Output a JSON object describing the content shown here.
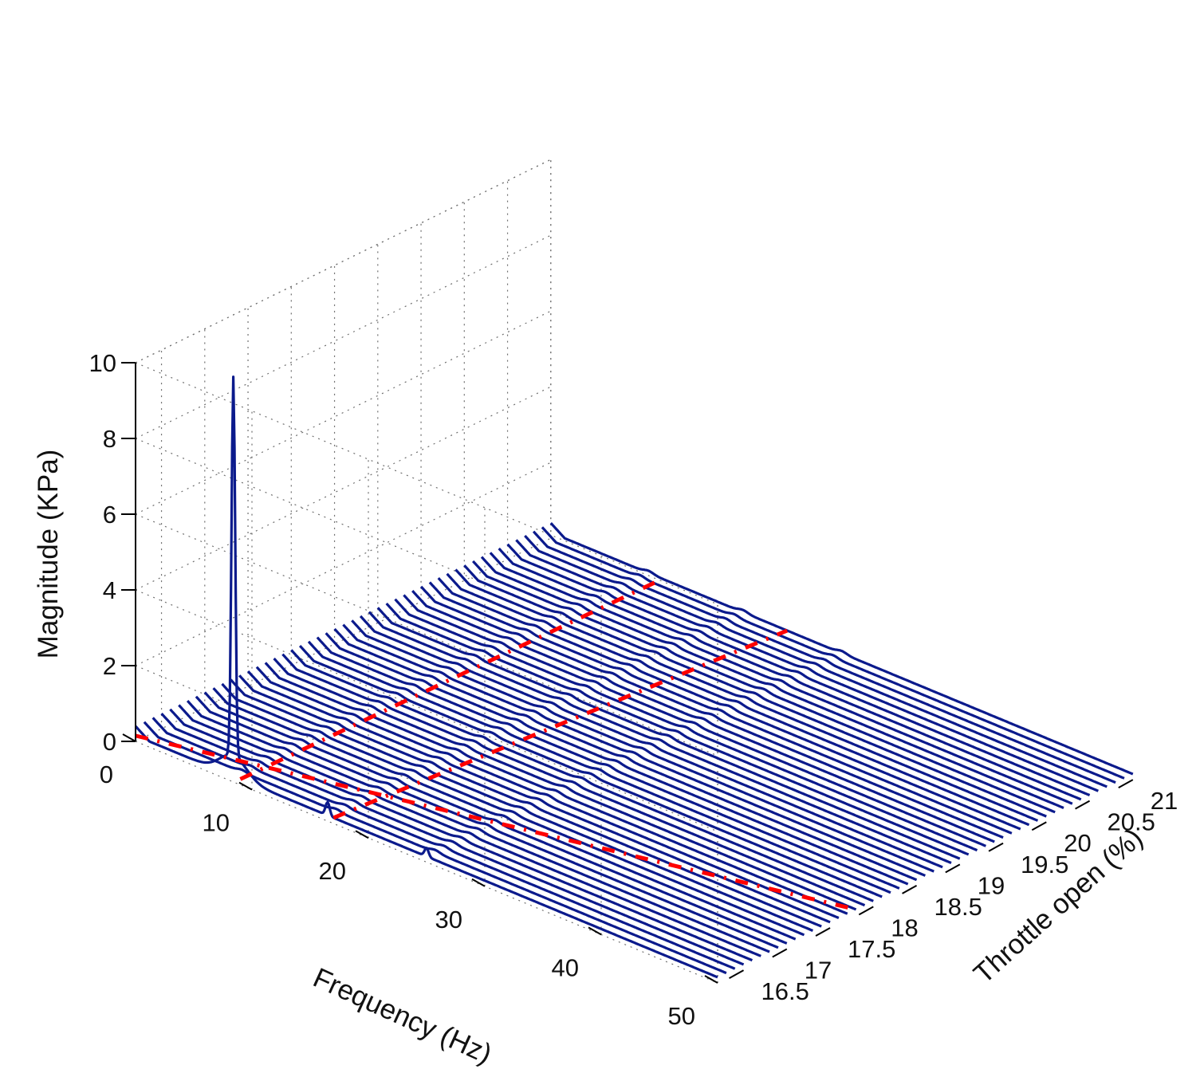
{
  "chart_data": {
    "type": "waterfall-3d",
    "title": "",
    "xlabel": "Frequency (Hz)",
    "ylabel": "Throttle open (%)",
    "zlabel": "Magnitude (KPa)",
    "xlim": [
      0,
      50
    ],
    "ylim": [
      16.2,
      21
    ],
    "zlim": [
      0,
      10
    ],
    "xticks": [
      0,
      10,
      20,
      30,
      40,
      50
    ],
    "yticks": [
      16.5,
      17,
      17.5,
      18,
      18.5,
      19,
      19.5,
      20,
      20.5,
      21
    ],
    "zticks": [
      0,
      2,
      4,
      6,
      8,
      10
    ],
    "xtick_labels": [
      "0",
      "10",
      "20",
      "30",
      "40",
      "50"
    ],
    "ytick_labels": [
      "16.5",
      "17",
      "17.5",
      "18",
      "18.5",
      "19",
      "19.5",
      "20",
      "20.5",
      "21"
    ],
    "ztick_labels": [
      "0",
      "2",
      "4",
      "6",
      "8",
      "10"
    ],
    "grid": true,
    "series": [
      {
        "kind": "spectra-lines",
        "color": "#0b1a8c",
        "throttle_start": 16.2,
        "throttle_end": 21.0,
        "throttle_step": 0.1,
        "peaks": [
          {
            "throttle": 16.2,
            "frequency": 8.4,
            "magnitude": 10.0
          },
          {
            "throttle": 16.2,
            "frequency": 16.5,
            "magnitude": 0.35
          },
          {
            "throttle": 16.2,
            "frequency": 25.0,
            "magnitude": 0.22
          }
        ],
        "baseline_magnitude": 0.15
      },
      {
        "kind": "ridge-lines",
        "color": "#ff0000",
        "lines": [
          {
            "from": {
              "frequency": 9.0,
              "throttle": 16.2
            },
            "to": {
              "frequency": 9.6,
              "throttle": 21.0
            }
          },
          {
            "from": {
              "frequency": 17.0,
              "throttle": 16.2
            },
            "to": {
              "frequency": 20.3,
              "throttle": 21.0
            }
          },
          {
            "from": {
              "frequency": 0.0,
              "throttle": 16.2
            },
            "to": {
              "frequency": 50.0,
              "throttle": 17.8
            }
          }
        ]
      }
    ]
  },
  "colors": {
    "spectra": "#0b1a8c",
    "ridge": "#ff0000",
    "grid": "#6f6f6f",
    "axis": "#000000"
  }
}
